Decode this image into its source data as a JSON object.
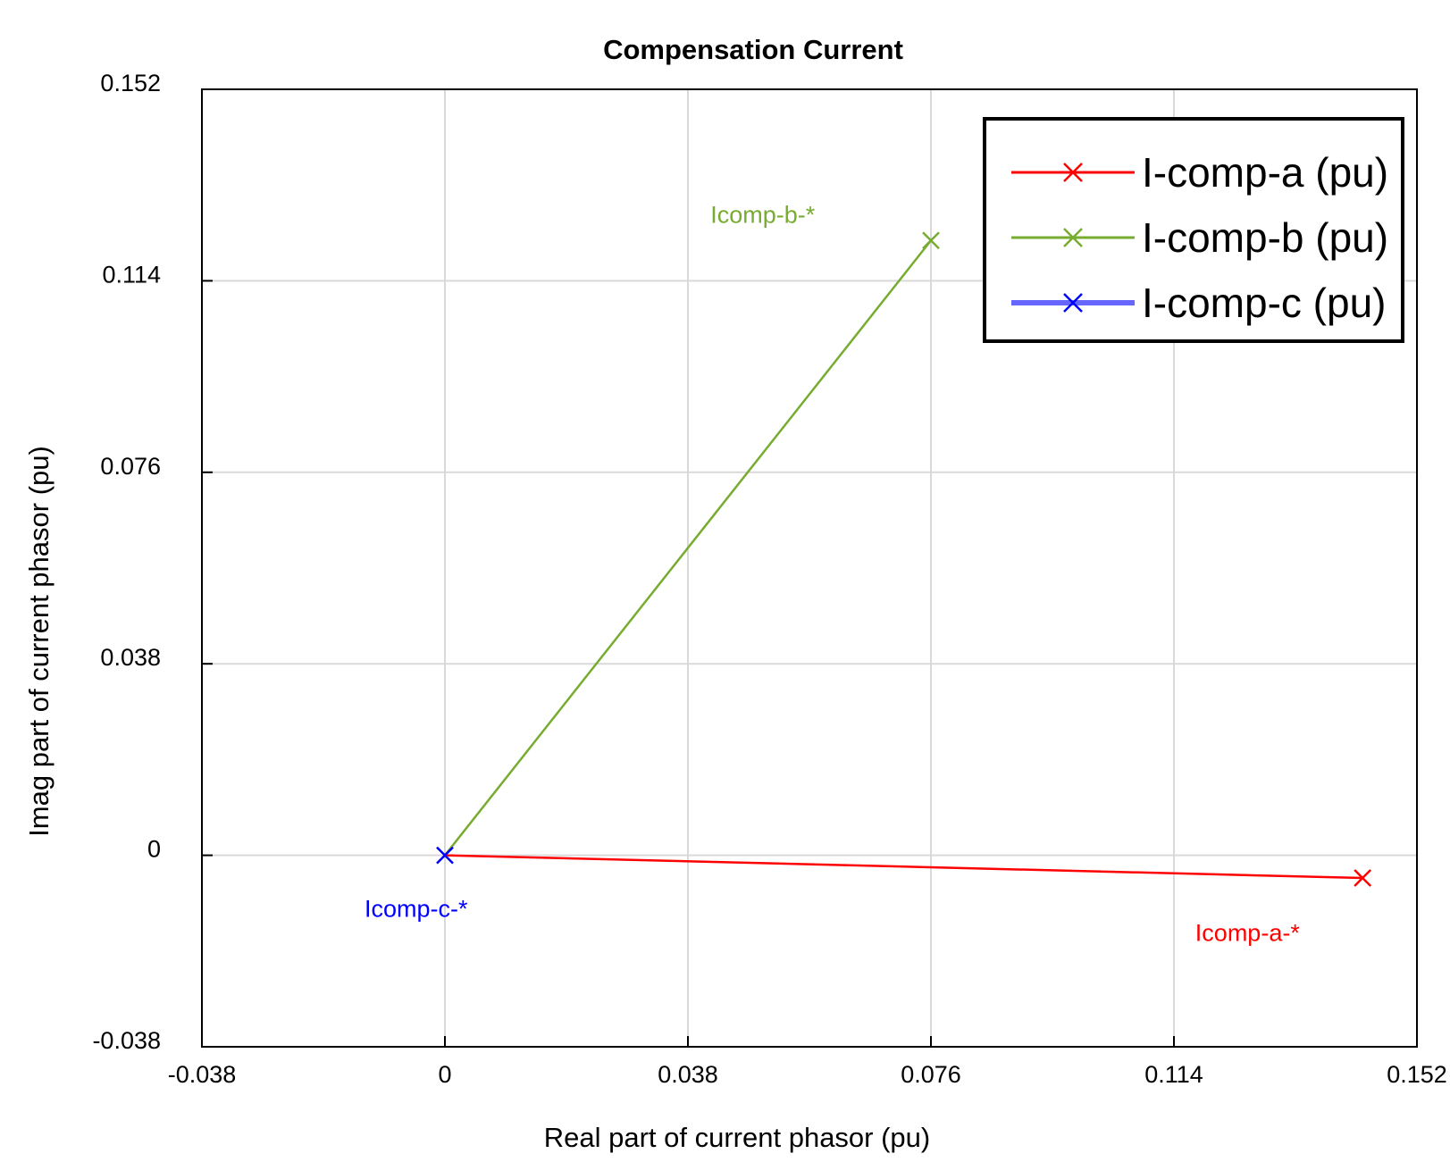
{
  "chart_data": {
    "type": "line",
    "title": "Compensation Current",
    "xlabel": "Real part of current phasor (pu)",
    "ylabel": "Imag part of current phasor (pu)",
    "xlim": [
      -0.038,
      0.152
    ],
    "ylim": [
      -0.038,
      0.152
    ],
    "xticks": [
      -0.038,
      0,
      0.038,
      0.076,
      0.114,
      0.152
    ],
    "yticks": [
      -0.038,
      0,
      0.038,
      0.076,
      0.114,
      0.152
    ],
    "xtick_labels": [
      "-0.038",
      "0",
      "0.038",
      "0.076",
      "0.114",
      "0.152"
    ],
    "ytick_labels": [
      "-0.038",
      "0",
      "0.038",
      "0.076",
      "0.114",
      "0.152"
    ],
    "grid": true,
    "legend_position": "top-right",
    "series": [
      {
        "name": "I-comp-a (pu)",
        "color": "#ff0000",
        "marker": "x",
        "points": [
          [
            0,
            0
          ],
          [
            0.1435,
            -0.0045
          ]
        ],
        "annotation": {
          "text": "Icomp-a-*",
          "x": 0.1255,
          "y": -0.017
        }
      },
      {
        "name": "I-comp-b (pu)",
        "color": "#77ac30",
        "marker": "x",
        "points": [
          [
            0,
            0
          ],
          [
            0.076,
            0.122
          ]
        ],
        "annotation": {
          "text": "Icomp-b-*",
          "x": 0.0497,
          "y": 0.1255
        }
      },
      {
        "name": "I-comp-c (pu)",
        "color": "#0000ff",
        "marker": "x",
        "points": [
          [
            0,
            0
          ],
          [
            0,
            0
          ]
        ],
        "annotation": {
          "text": "Icomp-c-*",
          "x": -0.0045,
          "y": -0.0122
        }
      }
    ]
  }
}
